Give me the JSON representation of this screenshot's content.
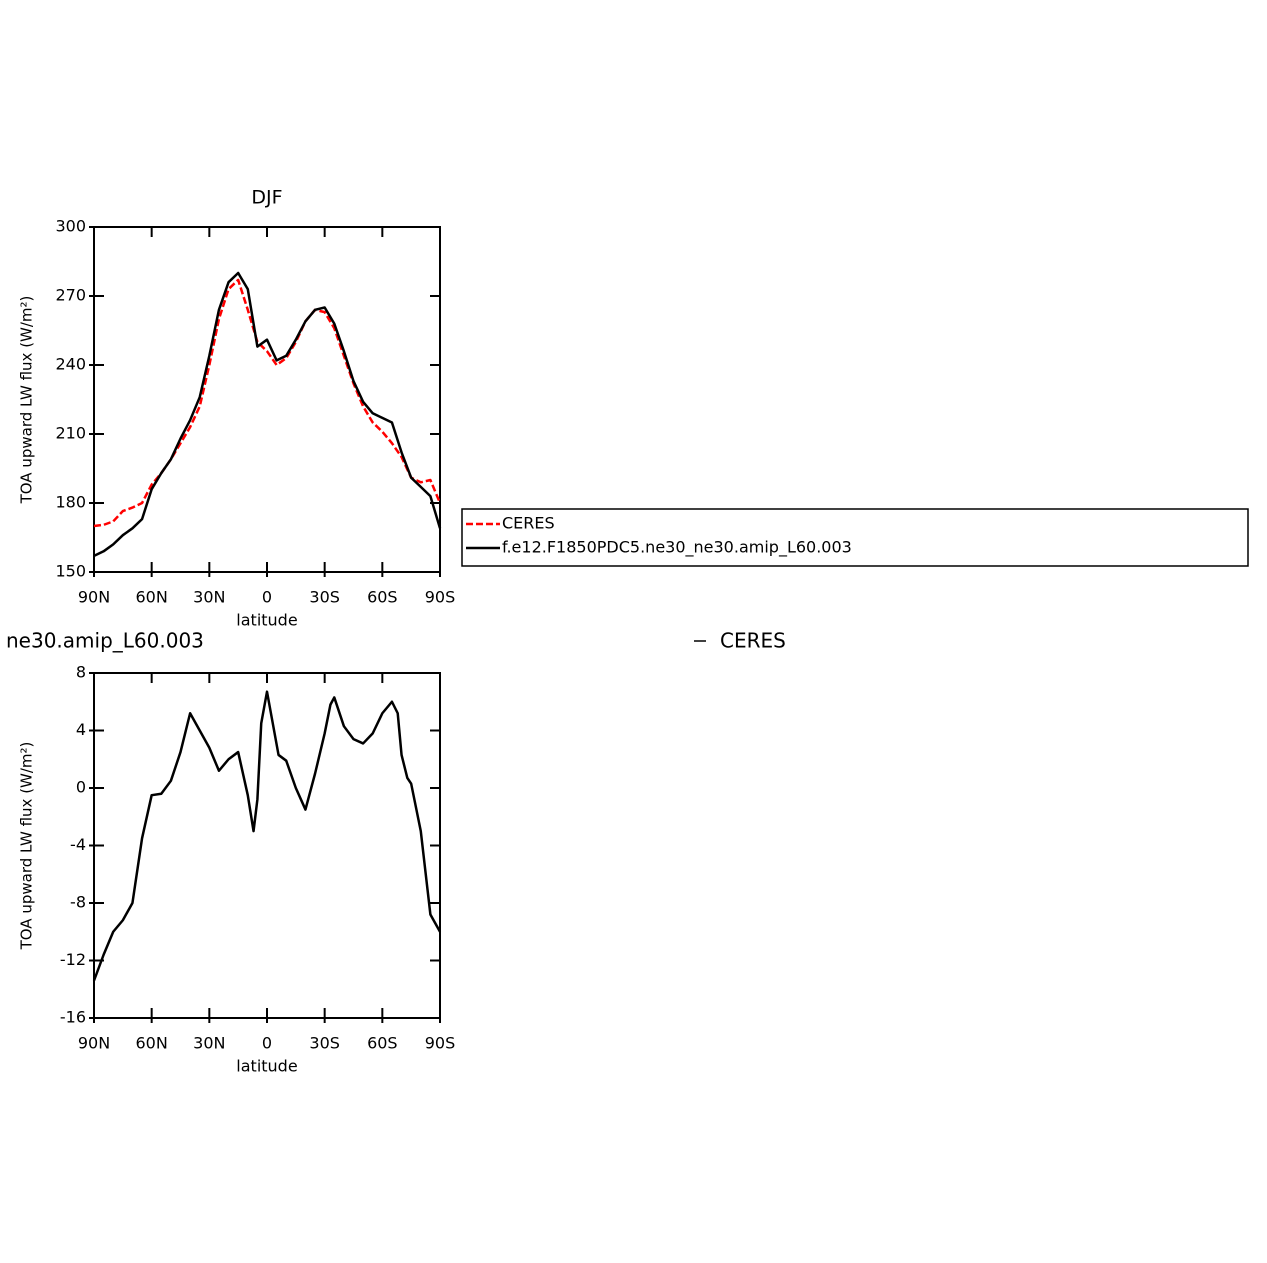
{
  "chart_data": [
    {
      "type": "line",
      "title": "DJF",
      "xlabel": "latitude",
      "ylabel": "TOA upward LW flux (W/m²)",
      "xlim": [
        90,
        -90
      ],
      "xticks": [
        {
          "value": 90,
          "label": "90N"
        },
        {
          "value": 60,
          "label": "60N"
        },
        {
          "value": 30,
          "label": "30N"
        },
        0,
        {
          "value": -30,
          "label": "30S"
        },
        {
          "value": -60,
          "label": "60S"
        },
        {
          "value": -90,
          "label": "90S"
        }
      ],
      "ylim": [
        150,
        300
      ],
      "yticks": [
        150,
        180,
        210,
        240,
        270,
        300
      ],
      "legend": "right",
      "series": [
        {
          "name": "CERES",
          "color": "#ff0000",
          "linestyle": "dashed",
          "x": [
            90,
            85,
            80,
            75,
            70,
            65,
            60,
            55,
            50,
            45,
            40,
            35,
            30,
            25,
            20,
            15,
            10,
            5,
            0,
            -5,
            -10,
            -15,
            -20,
            -25,
            -30,
            -35,
            -40,
            -45,
            -50,
            -55,
            -60,
            -65,
            -70,
            -75,
            -80,
            -85,
            -90
          ],
          "values": [
            170,
            170.5,
            172,
            176.5,
            178,
            180,
            188,
            193,
            199,
            206,
            213,
            222,
            240,
            260,
            273,
            277,
            264,
            250,
            246,
            240,
            243,
            250,
            259,
            264,
            263,
            256,
            244,
            232,
            222,
            215,
            211,
            206,
            200,
            191,
            189,
            190,
            180
          ]
        },
        {
          "name": "f.e12.F1850PDC5.ne30_ne30.amip_L60.003",
          "color": "#000000",
          "linestyle": "solid",
          "x": [
            90,
            85,
            80,
            75,
            70,
            65,
            60,
            55,
            50,
            45,
            40,
            35,
            30,
            25,
            20,
            15,
            10,
            5,
            0,
            -5,
            -10,
            -15,
            -20,
            -25,
            -30,
            -35,
            -40,
            -45,
            -50,
            -55,
            -60,
            -65,
            -70,
            -75,
            -80,
            -85,
            -90
          ],
          "values": [
            157,
            159,
            162,
            166,
            169,
            173,
            186,
            193,
            199,
            208,
            216,
            226,
            244,
            264,
            276,
            280,
            273,
            248,
            251,
            242,
            244,
            251,
            259,
            264,
            265,
            258,
            246,
            233,
            224,
            219,
            217,
            215,
            202,
            191,
            187,
            183,
            169
          ]
        }
      ]
    },
    {
      "type": "line",
      "title": "ne30.amip_L60.003",
      "right_title": "CERES",
      "xlabel": "latitude",
      "ylabel": "TOA upward LW flux (W/m²)",
      "xlim": [
        90,
        -90
      ],
      "xticks": [
        {
          "value": 90,
          "label": "90N"
        },
        {
          "value": 60,
          "label": "60N"
        },
        {
          "value": 30,
          "label": "30N"
        },
        0,
        {
          "value": -30,
          "label": "30S"
        },
        {
          "value": -60,
          "label": "60S"
        },
        {
          "value": -90,
          "label": "90S"
        }
      ],
      "ylim": [
        -16,
        8
      ],
      "yticks": [
        -16,
        -12,
        -8,
        -4,
        0,
        4,
        8
      ],
      "series": [
        {
          "color": "#000000",
          "linestyle": "solid",
          "x": [
            90,
            85,
            80,
            75,
            70,
            65,
            60,
            55,
            50,
            45,
            40,
            35,
            30,
            25,
            20,
            15,
            10,
            7,
            5,
            3,
            0,
            -3,
            -6,
            -10,
            -15,
            -20,
            -25,
            -30,
            -33,
            -35,
            -40,
            -45,
            -50,
            -55,
            -60,
            -65,
            -68,
            -70,
            -73,
            -75,
            -80,
            -85,
            -90
          ],
          "values": [
            -13.4,
            -11.6,
            -10,
            -9.2,
            -8,
            -3.5,
            -0.5,
            -0.4,
            0.5,
            2.5,
            5.2,
            4,
            2.8,
            1.2,
            2,
            2.5,
            -0.5,
            -3,
            -0.8,
            4.5,
            6.7,
            4.5,
            2.3,
            1.9,
            0,
            -1.5,
            1,
            3.8,
            5.8,
            6.3,
            4.3,
            3.4,
            3.1,
            3.8,
            5.2,
            6,
            5.2,
            2.3,
            0.7,
            0.3,
            -3,
            -8.8,
            -10
          ]
        }
      ]
    }
  ]
}
